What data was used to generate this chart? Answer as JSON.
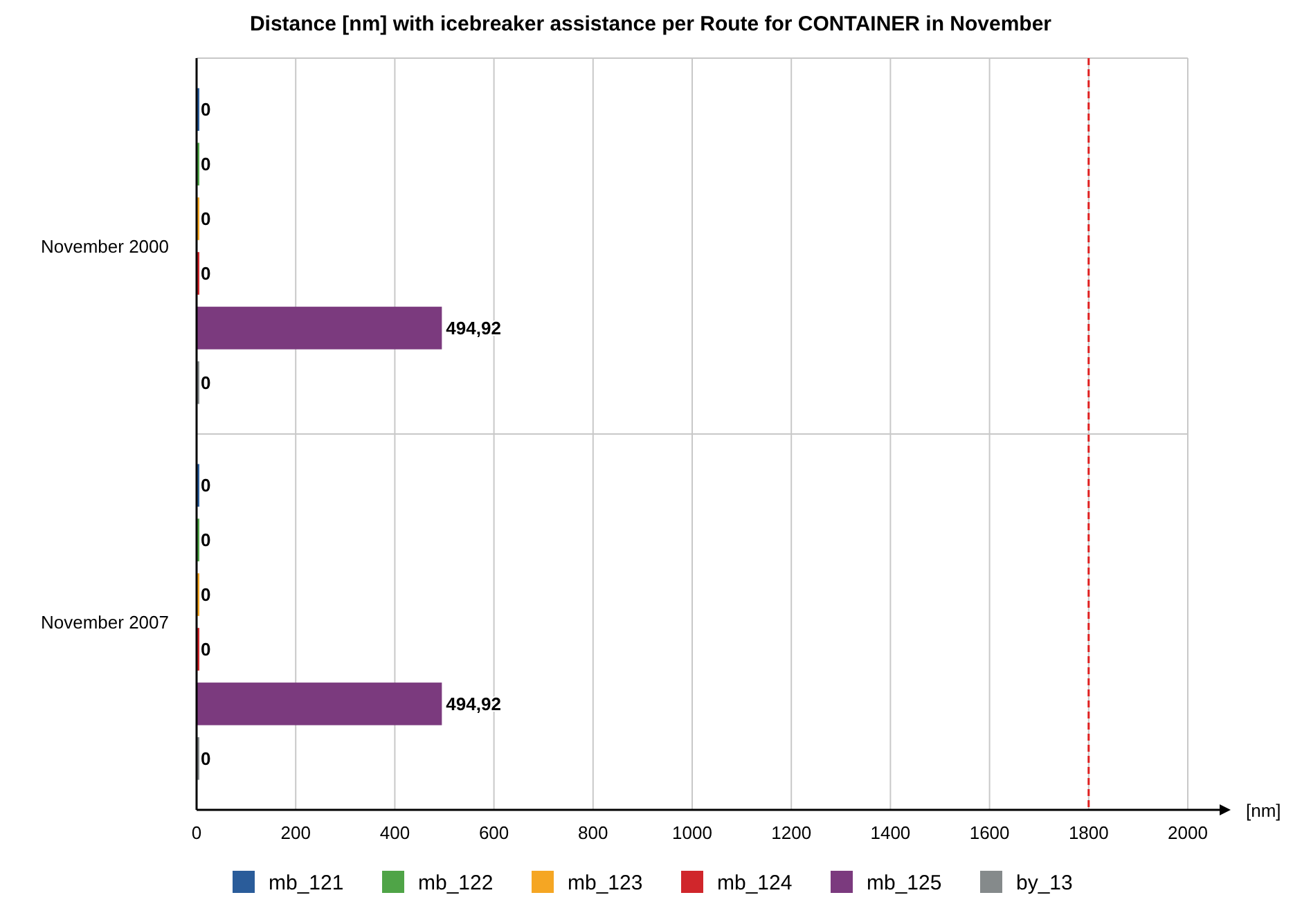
{
  "chart_data": {
    "type": "bar",
    "orientation": "horizontal",
    "title": "Distance [nm] with icebreaker assistance per Route for CONTAINER in November",
    "xlabel": "[nm]",
    "categories": [
      "November 2000",
      "November 2007"
    ],
    "series": [
      {
        "name": "mb_121",
        "color": "#2a5c9a",
        "values": [
          0,
          0
        ],
        "value_labels": [
          "0",
          "0"
        ]
      },
      {
        "name": "mb_122",
        "color": "#4fa447",
        "values": [
          0,
          0
        ],
        "value_labels": [
          "0",
          "0"
        ]
      },
      {
        "name": "mb_123",
        "color": "#f5a623",
        "values": [
          0,
          0
        ],
        "value_labels": [
          "0",
          "0"
        ]
      },
      {
        "name": "mb_124",
        "color": "#d0262b",
        "values": [
          0,
          0
        ],
        "value_labels": [
          "0",
          "0"
        ]
      },
      {
        "name": "mb_125",
        "color": "#7b3a7e",
        "values": [
          494.92,
          494.92
        ],
        "value_labels": [
          "494,92",
          "494,92"
        ]
      },
      {
        "name": "by_13",
        "color": "#858a8b",
        "values": [
          0,
          0
        ],
        "value_labels": [
          "0",
          "0"
        ]
      }
    ],
    "xlim": [
      0,
      2000
    ],
    "xticks": [
      0,
      200,
      400,
      600,
      800,
      1000,
      1200,
      1400,
      1600,
      1800,
      2000
    ],
    "ref_lines": [
      {
        "axis": "x",
        "value": 1800,
        "color": "#e02020",
        "line_style": "dashed"
      }
    ],
    "grid": "x",
    "legend": "bottom"
  }
}
